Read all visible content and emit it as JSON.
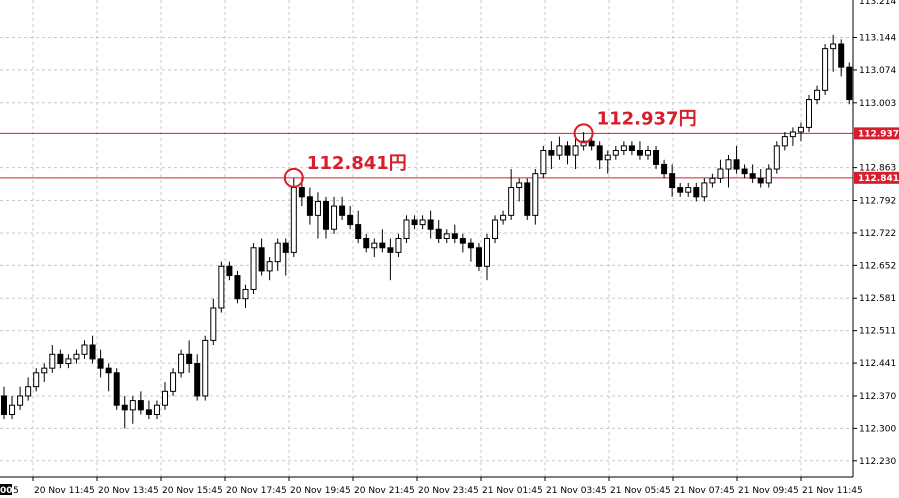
{
  "chart_data": {
    "type": "candlestick",
    "title": "",
    "xlabel": "",
    "ylabel": "",
    "ylim": [
      112.195,
      113.225
    ],
    "grid": true,
    "y_ticks": [
      "113.144",
      "113.074",
      "113.003",
      "112.863",
      "112.792",
      "112.722",
      "112.652",
      "112.581",
      "112.511",
      "112.441",
      "112.370",
      "112.300",
      "112.230"
    ],
    "y_tick_top_partial": "113.214",
    "x_ticks": [
      "20 Nov 11:45",
      "20 Nov 13:45",
      "20 Nov 15:45",
      "20 Nov 17:45",
      "20 Nov 19:45",
      "20 Nov 21:45",
      "20 Nov 23:45",
      "21 Nov 01:45",
      "21 Nov 03:45",
      "21 Nov 05:45",
      "21 Nov 07:45",
      "21 Nov 09:45",
      "21 Nov 11:45"
    ],
    "x_tick_left_partial": "00",
    "x_tick_left_partial_suffix": "5",
    "colors": {
      "up_fill": "#ffffff",
      "down_fill": "#000000",
      "wick": "#000000",
      "grid": "#c8c8c8",
      "level": "#d81e2c",
      "annotation": "#d81e2c"
    },
    "levels": [
      {
        "value": 112.937,
        "badge": "112.937"
      },
      {
        "value": 112.841,
        "badge": "112.841"
      }
    ],
    "annotations": [
      {
        "text": "112.841円",
        "candle": 36,
        "value": 112.841
      },
      {
        "text": "112.937円",
        "candle": 72,
        "value": 112.937
      }
    ],
    "candles": [
      [
        112.37,
        112.39,
        112.32,
        112.33
      ],
      [
        112.33,
        112.37,
        112.32,
        112.35
      ],
      [
        112.35,
        112.39,
        112.34,
        112.37
      ],
      [
        112.37,
        112.41,
        112.36,
        112.39
      ],
      [
        112.39,
        112.43,
        112.38,
        112.42
      ],
      [
        112.42,
        112.44,
        112.4,
        112.43
      ],
      [
        112.43,
        112.48,
        112.42,
        112.46
      ],
      [
        112.46,
        112.47,
        112.43,
        112.44
      ],
      [
        112.44,
        112.46,
        112.43,
        112.45
      ],
      [
        112.45,
        112.47,
        112.44,
        112.46
      ],
      [
        112.46,
        112.49,
        112.45,
        112.48
      ],
      [
        112.48,
        112.5,
        112.44,
        112.45
      ],
      [
        112.45,
        112.47,
        112.41,
        112.43
      ],
      [
        112.43,
        112.44,
        112.38,
        112.42
      ],
      [
        112.42,
        112.43,
        112.34,
        112.35
      ],
      [
        112.35,
        112.37,
        112.3,
        112.34
      ],
      [
        112.34,
        112.37,
        112.31,
        112.36
      ],
      [
        112.36,
        112.38,
        112.33,
        112.34
      ],
      [
        112.34,
        112.36,
        112.32,
        112.33
      ],
      [
        112.33,
        112.36,
        112.32,
        112.35
      ],
      [
        112.35,
        112.4,
        112.34,
        112.38
      ],
      [
        112.38,
        112.43,
        112.37,
        112.42
      ],
      [
        112.42,
        112.47,
        112.41,
        112.46
      ],
      [
        112.46,
        112.49,
        112.42,
        112.44
      ],
      [
        112.44,
        112.46,
        112.36,
        112.37
      ],
      [
        112.37,
        112.5,
        112.36,
        112.49
      ],
      [
        112.49,
        112.58,
        112.48,
        112.56
      ],
      [
        112.56,
        112.66,
        112.55,
        112.65
      ],
      [
        112.65,
        112.66,
        112.62,
        112.63
      ],
      [
        112.63,
        112.64,
        112.57,
        112.58
      ],
      [
        112.58,
        112.61,
        112.56,
        112.6
      ],
      [
        112.6,
        112.7,
        112.59,
        112.69
      ],
      [
        112.69,
        112.71,
        112.63,
        112.64
      ],
      [
        112.64,
        112.67,
        112.62,
        112.66
      ],
      [
        112.66,
        112.71,
        112.64,
        112.7
      ],
      [
        112.7,
        112.71,
        112.63,
        112.68
      ],
      [
        112.68,
        112.84,
        112.67,
        112.82
      ],
      [
        112.82,
        112.84,
        112.78,
        112.8
      ],
      [
        112.8,
        112.82,
        112.74,
        112.76
      ],
      [
        112.76,
        112.81,
        112.71,
        112.79
      ],
      [
        112.79,
        112.8,
        112.71,
        112.73
      ],
      [
        112.73,
        112.8,
        112.72,
        112.78
      ],
      [
        112.78,
        112.8,
        112.75,
        112.76
      ],
      [
        112.76,
        112.78,
        112.73,
        112.74
      ],
      [
        112.74,
        112.77,
        112.7,
        112.71
      ],
      [
        112.71,
        112.72,
        112.68,
        112.69
      ],
      [
        112.69,
        112.71,
        112.67,
        112.7
      ],
      [
        112.7,
        112.73,
        112.68,
        112.69
      ],
      [
        112.69,
        112.71,
        112.62,
        112.68
      ],
      [
        112.68,
        112.72,
        112.67,
        112.71
      ],
      [
        112.71,
        112.76,
        112.7,
        112.75
      ],
      [
        112.75,
        112.76,
        112.73,
        112.74
      ],
      [
        112.74,
        112.76,
        112.73,
        112.75
      ],
      [
        112.75,
        112.77,
        112.71,
        112.73
      ],
      [
        112.73,
        112.75,
        112.7,
        112.71
      ],
      [
        112.71,
        112.73,
        112.7,
        112.72
      ],
      [
        112.72,
        112.74,
        112.7,
        112.71
      ],
      [
        112.71,
        112.72,
        112.68,
        112.7
      ],
      [
        112.7,
        112.71,
        112.66,
        112.69
      ],
      [
        112.69,
        112.7,
        112.64,
        112.65
      ],
      [
        112.65,
        112.72,
        112.62,
        112.71
      ],
      [
        112.71,
        112.76,
        112.7,
        112.75
      ],
      [
        112.75,
        112.77,
        112.74,
        112.76
      ],
      [
        112.76,
        112.86,
        112.75,
        112.82
      ],
      [
        112.82,
        112.84,
        112.79,
        112.83
      ],
      [
        112.83,
        112.84,
        112.75,
        112.76
      ],
      [
        112.76,
        112.86,
        112.74,
        112.85
      ],
      [
        112.85,
        112.91,
        112.84,
        112.9
      ],
      [
        112.9,
        112.92,
        112.86,
        112.89
      ],
      [
        112.89,
        112.93,
        112.88,
        112.91
      ],
      [
        112.91,
        112.92,
        112.87,
        112.89
      ],
      [
        112.89,
        112.93,
        112.86,
        112.91
      ],
      [
        112.91,
        112.94,
        112.9,
        112.92
      ],
      [
        112.92,
        112.93,
        112.9,
        112.91
      ],
      [
        112.91,
        112.92,
        112.86,
        112.88
      ],
      [
        112.88,
        112.9,
        112.85,
        112.89
      ],
      [
        112.89,
        112.91,
        112.88,
        112.9
      ],
      [
        112.9,
        112.92,
        112.89,
        112.91
      ],
      [
        112.91,
        112.92,
        112.89,
        112.9
      ],
      [
        112.9,
        112.92,
        112.88,
        112.89
      ],
      [
        112.89,
        112.91,
        112.88,
        112.9
      ],
      [
        112.9,
        112.91,
        112.86,
        112.87
      ],
      [
        112.87,
        112.88,
        112.84,
        112.85
      ],
      [
        112.85,
        112.87,
        112.8,
        112.82
      ],
      [
        112.82,
        112.83,
        112.8,
        112.81
      ],
      [
        112.81,
        112.83,
        112.8,
        112.82
      ],
      [
        112.82,
        112.83,
        112.79,
        112.8
      ],
      [
        112.8,
        112.84,
        112.79,
        112.83
      ],
      [
        112.83,
        112.85,
        112.82,
        112.84
      ],
      [
        112.84,
        112.88,
        112.83,
        112.86
      ],
      [
        112.86,
        112.89,
        112.82,
        112.88
      ],
      [
        112.88,
        112.91,
        112.85,
        112.86
      ],
      [
        112.86,
        112.87,
        112.84,
        112.85
      ],
      [
        112.85,
        112.87,
        112.83,
        112.84
      ],
      [
        112.84,
        112.86,
        112.82,
        112.83
      ],
      [
        112.83,
        112.87,
        112.82,
        112.86
      ],
      [
        112.86,
        112.92,
        112.85,
        112.91
      ],
      [
        112.91,
        112.94,
        112.9,
        112.93
      ],
      [
        112.93,
        112.95,
        112.91,
        112.94
      ],
      [
        112.94,
        112.96,
        112.92,
        112.95
      ],
      [
        112.95,
        113.02,
        112.94,
        113.01
      ],
      [
        113.01,
        113.04,
        113.0,
        113.03
      ],
      [
        113.03,
        113.13,
        113.02,
        113.12
      ],
      [
        113.12,
        113.15,
        113.07,
        113.13
      ],
      [
        113.13,
        113.14,
        113.06,
        113.08
      ],
      [
        113.08,
        113.09,
        113.0,
        113.01
      ]
    ]
  }
}
